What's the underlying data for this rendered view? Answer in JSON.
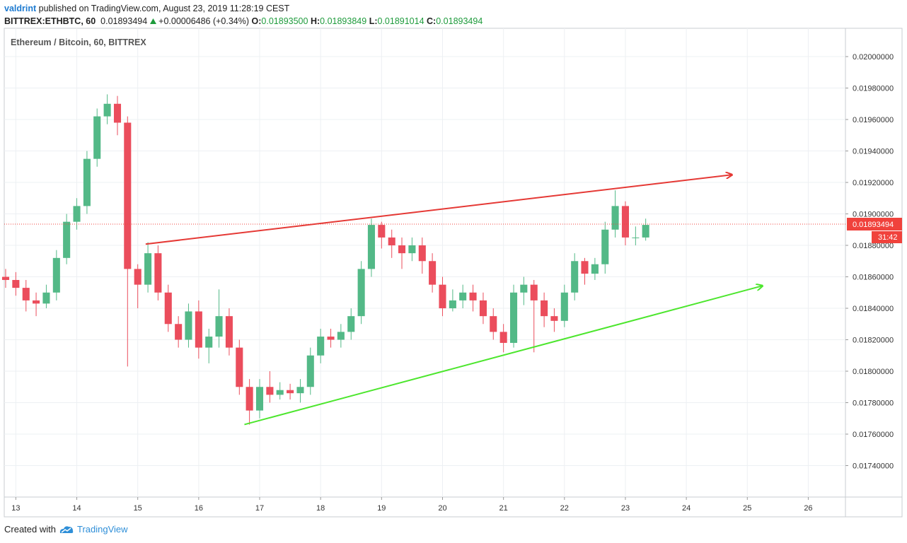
{
  "header": {
    "author": "valdrint",
    "published": "published on TradingView.com, August 23, 2019 11:28:19 CEST",
    "symbol": "BITTREX:ETHBTC, 60",
    "last": "0.01893494",
    "change": "+0.00006486 (+0.34%)",
    "ohlc": [
      {
        "label": "O:",
        "value": "0.01893500"
      },
      {
        "label": "H:",
        "value": "0.01893849"
      },
      {
        "label": "L:",
        "value": "0.01891014"
      },
      {
        "label": "C:",
        "value": "0.01893494"
      }
    ]
  },
  "chart_data": {
    "type": "candlestick",
    "title": "Ethereum / Bitcoin, 60, BITTREX",
    "x": [
      12.833,
      13,
      13.167,
      13.333,
      13.5,
      13.667,
      13.833,
      14,
      14.167,
      14.333,
      14.5,
      14.667,
      14.833,
      15,
      15.167,
      15.333,
      15.5,
      15.667,
      15.833,
      16,
      16.167,
      16.333,
      16.5,
      16.667,
      16.833,
      17,
      17.167,
      17.333,
      17.5,
      17.667,
      17.833,
      18,
      18.167,
      18.333,
      18.5,
      18.667,
      18.833,
      19,
      19.167,
      19.333,
      19.5,
      19.667,
      19.833,
      20,
      20.167,
      20.333,
      20.5,
      20.667,
      20.833,
      21,
      21.167,
      21.333,
      21.5,
      21.667,
      21.833,
      22,
      22.167,
      22.333,
      22.5,
      22.667,
      22.833,
      23,
      23.167,
      23.333
    ],
    "open": [
      0.0186,
      0.01858,
      0.01853,
      0.01845,
      0.01843,
      0.0185,
      0.01872,
      0.01895,
      0.01905,
      0.01935,
      0.01962,
      0.0197,
      0.01958,
      0.01865,
      0.01855,
      0.01875,
      0.0185,
      0.0183,
      0.0182,
      0.01838,
      0.01815,
      0.01822,
      0.01835,
      0.01815,
      0.0179,
      0.01775,
      0.0179,
      0.01785,
      0.01788,
      0.01786,
      0.0179,
      0.0181,
      0.01822,
      0.0182,
      0.01825,
      0.01835,
      0.01865,
      0.01893,
      0.01885,
      0.0188,
      0.01875,
      0.0188,
      0.0187,
      0.01855,
      0.0184,
      0.01845,
      0.0185,
      0.01845,
      0.01835,
      0.01825,
      0.01818,
      0.0185,
      0.01855,
      0.01845,
      0.01835,
      0.01832,
      0.0185,
      0.0187,
      0.01862,
      0.01868,
      0.0189,
      0.01905,
      0.01885,
      0.01885
    ],
    "high": [
      0.01865,
      0.01863,
      0.01858,
      0.0185,
      0.01855,
      0.01877,
      0.019,
      0.0191,
      0.0194,
      0.01967,
      0.01976,
      0.01975,
      0.01962,
      0.01868,
      0.01882,
      0.0188,
      0.01855,
      0.01835,
      0.01843,
      0.01845,
      0.01827,
      0.01852,
      0.0184,
      0.0182,
      0.01795,
      0.01795,
      0.018,
      0.01793,
      0.01792,
      0.01795,
      0.01815,
      0.01827,
      0.01827,
      0.0183,
      0.0184,
      0.0187,
      0.01897,
      0.01895,
      0.0189,
      0.01885,
      0.01885,
      0.01885,
      0.01875,
      0.0186,
      0.01852,
      0.01855,
      0.01855,
      0.0185,
      0.0184,
      0.0183,
      0.01855,
      0.0186,
      0.01858,
      0.0185,
      0.0184,
      0.01855,
      0.01875,
      0.01872,
      0.01872,
      0.01895,
      0.01915,
      0.01908,
      0.01892,
      0.01897
    ],
    "low": [
      0.01853,
      0.01848,
      0.01838,
      0.01835,
      0.0184,
      0.01845,
      0.01868,
      0.0189,
      0.019,
      0.0193,
      0.01957,
      0.0195,
      0.01803,
      0.0184,
      0.0185,
      0.01845,
      0.01825,
      0.01815,
      0.01815,
      0.01808,
      0.01805,
      0.01815,
      0.0181,
      0.01785,
      0.01766,
      0.0177,
      0.0178,
      0.01782,
      0.01782,
      0.0178,
      0.01785,
      0.01805,
      0.01815,
      0.01815,
      0.0182,
      0.0183,
      0.0186,
      0.01878,
      0.01872,
      0.01865,
      0.0187,
      0.01862,
      0.0185,
      0.01835,
      0.01838,
      0.0184,
      0.01838,
      0.0183,
      0.0182,
      0.01812,
      0.01815,
      0.01842,
      0.01812,
      0.01828,
      0.01825,
      0.01828,
      0.01845,
      0.01855,
      0.01858,
      0.01862,
      0.01885,
      0.0188,
      0.0188,
      0.01883
    ],
    "close": [
      0.01858,
      0.01853,
      0.01845,
      0.01843,
      0.0185,
      0.01872,
      0.01895,
      0.01905,
      0.01935,
      0.01962,
      0.0197,
      0.01958,
      0.01865,
      0.01855,
      0.01875,
      0.0185,
      0.0183,
      0.0182,
      0.01838,
      0.01815,
      0.01822,
      0.01835,
      0.01815,
      0.0179,
      0.01775,
      0.0179,
      0.01785,
      0.01788,
      0.01786,
      0.0179,
      0.0181,
      0.01822,
      0.0182,
      0.01825,
      0.01835,
      0.01865,
      0.01893,
      0.01885,
      0.0188,
      0.01875,
      0.0188,
      0.0187,
      0.01855,
      0.0184,
      0.01845,
      0.0185,
      0.01845,
      0.01835,
      0.01825,
      0.01818,
      0.0185,
      0.01855,
      0.01845,
      0.01835,
      0.01832,
      0.0185,
      0.0187,
      0.01862,
      0.01868,
      0.0189,
      0.01905,
      0.01885,
      0.01885,
      0.01893
    ],
    "up_color": "#53b987",
    "down_color": "#eb4d5c",
    "xlim": [
      12.81,
      26.61
    ],
    "xticks": [
      13,
      14,
      15,
      16,
      17,
      18,
      19,
      20,
      21,
      22,
      23,
      24,
      25,
      26
    ],
    "ylim": [
      0.0172,
      0.02018
    ],
    "yticks": [
      {
        "value": 0.0174,
        "label": "0.01740000"
      },
      {
        "value": 0.0176,
        "label": "0.01760000"
      },
      {
        "value": 0.0178,
        "label": "0.01780000"
      },
      {
        "value": 0.018,
        "label": "0.01800000"
      },
      {
        "value": 0.0182,
        "label": "0.01820000"
      },
      {
        "value": 0.0184,
        "label": "0.01840000"
      },
      {
        "value": 0.0186,
        "label": "0.01860000"
      },
      {
        "value": 0.0188,
        "label": "0.01880000"
      },
      {
        "value": 0.019,
        "label": "0.01900000"
      },
      {
        "value": 0.0192,
        "label": "0.01920000"
      },
      {
        "value": 0.0194,
        "label": "0.01940000"
      },
      {
        "value": 0.0196,
        "label": "0.01960000"
      },
      {
        "value": 0.0198,
        "label": "0.01980000"
      },
      {
        "value": 0.02,
        "label": "0.02000000"
      }
    ],
    "grid": true,
    "last_price": 0.01893494,
    "last_price_color": "#f0423c",
    "countdown": "31:42",
    "trendlines": [
      {
        "color": "#e53935",
        "x": [
          15.13,
          24.75
        ],
        "y": [
          0.018808,
          0.019249
        ]
      },
      {
        "color": "#4ce62d",
        "x": [
          16.75,
          25.25
        ],
        "y": [
          0.017661,
          0.018543
        ]
      }
    ]
  },
  "footer": {
    "created_with": "Created with",
    "brand": "TradingView"
  }
}
